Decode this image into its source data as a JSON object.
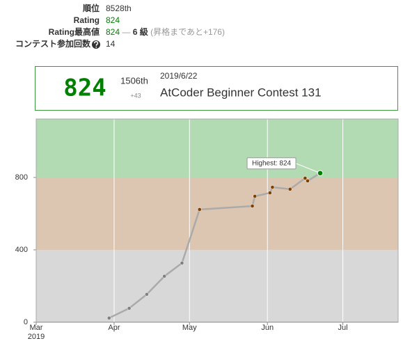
{
  "profile": {
    "rows": [
      {
        "label": "順位",
        "value": "8528th"
      },
      {
        "label": "Rating",
        "value": "824"
      },
      {
        "label": "Rating最高値",
        "value": "824",
        "separator": "—",
        "rank": "6 級",
        "note": "(昇格まであと+176)"
      },
      {
        "label": "コンテスト参加回数",
        "value": "14"
      }
    ]
  },
  "latest": {
    "rating": "824",
    "place": "1506th",
    "diff": "+43",
    "date": "2019/6/22",
    "contest": "AtCoder Beginner Contest 131"
  },
  "chart_data": {
    "type": "line",
    "x": [
      "2019-03-30",
      "2019-04-07",
      "2019-04-14",
      "2019-04-21",
      "2019-04-28",
      "2019-05-05",
      "2019-05-26",
      "2019-05-27",
      "2019-06-02",
      "2019-06-03",
      "2019-06-10",
      "2019-06-16",
      "2019-06-17",
      "2019-06-22"
    ],
    "values": [
      23,
      77,
      154,
      254,
      327,
      623,
      642,
      696,
      715,
      746,
      735,
      796,
      781,
      824
    ],
    "line_color": "#aaaaaa",
    "xlim": [
      "2019-03-01",
      "2019-07-23"
    ],
    "xticks": [
      {
        "value": "2019-03-01",
        "label": "Mar"
      },
      {
        "value": "2019-04-01",
        "label": "Apr"
      },
      {
        "value": "2019-05-01",
        "label": "May"
      },
      {
        "value": "2019-06-01",
        "label": "Jun"
      },
      {
        "value": "2019-07-01",
        "label": "Jul"
      }
    ],
    "year_label": "2019",
    "ylim": [
      0,
      1123
    ],
    "yticks": [
      0,
      400,
      800
    ],
    "grid": true,
    "bands": [
      {
        "from": 0,
        "to": 400,
        "color": "#d8d8d8",
        "point_color": "#808080"
      },
      {
        "from": 400,
        "to": 800,
        "color": "#dcc5b1",
        "point_color": "#804000"
      },
      {
        "from": 800,
        "to": 1200,
        "color": "#b3dbb3",
        "point_color": "#008000"
      }
    ],
    "annotation": "Highest: 824"
  }
}
